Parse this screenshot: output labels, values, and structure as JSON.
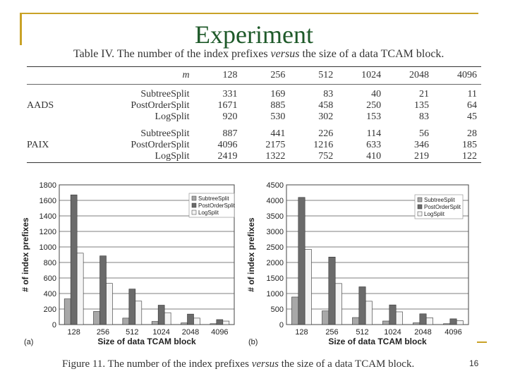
{
  "slide": {
    "title": "Experiment",
    "page_number": "16"
  },
  "table": {
    "caption_pre": "Table IV. The number of the index prefixes ",
    "caption_em": "versus",
    "caption_post": " the size of a data TCAM block.",
    "header": {
      "m": "m",
      "cols": [
        "128",
        "256",
        "512",
        "1024",
        "2048",
        "4096"
      ]
    },
    "groups": [
      {
        "name": "AADS",
        "rows": [
          {
            "label": "SubtreeSplit",
            "values": [
              "331",
              "169",
              "83",
              "40",
              "21",
              "11"
            ]
          },
          {
            "label": "PostOrderSplit",
            "values": [
              "1671",
              "885",
              "458",
              "250",
              "135",
              "64"
            ]
          },
          {
            "label": "LogSplit",
            "values": [
              "920",
              "530",
              "302",
              "153",
              "83",
              "45"
            ]
          }
        ]
      },
      {
        "name": "PAIX",
        "rows": [
          {
            "label": "SubtreeSplit",
            "values": [
              "887",
              "441",
              "226",
              "114",
              "56",
              "28"
            ]
          },
          {
            "label": "PostOrderSplit",
            "values": [
              "4096",
              "2175",
              "1216",
              "633",
              "346",
              "185"
            ]
          },
          {
            "label": "LogSplit",
            "values": [
              "2419",
              "1322",
              "752",
              "410",
              "219",
              "122"
            ]
          }
        ]
      }
    ]
  },
  "figure": {
    "caption_pre": "Figure 11. The number of the index prefixes ",
    "caption_em": "versus",
    "caption_post": " the size of a data TCAM block."
  },
  "colors": {
    "title": "#1f5a2a",
    "accent": "#c9a227",
    "subtree": "#a8a8a8",
    "postorder": "#6b6b6b",
    "log": "#f4f4f4"
  },
  "chart_data": [
    {
      "type": "bar",
      "panel_label": "(a)",
      "categories": [
        "128",
        "256",
        "512",
        "1024",
        "2048",
        "4096"
      ],
      "series": [
        {
          "name": "SubtreeSplit",
          "values": [
            331,
            169,
            83,
            40,
            21,
            11
          ]
        },
        {
          "name": "PostOrderSplit",
          "values": [
            1671,
            885,
            458,
            250,
            135,
            64
          ]
        },
        {
          "name": "LogSplit",
          "values": [
            920,
            530,
            302,
            153,
            83,
            45
          ]
        }
      ],
      "xlabel": "Size of data TCAM block",
      "ylabel": "# of index prefixes",
      "ylim": [
        0,
        1800
      ],
      "yticks": [
        "0",
        "200",
        "400",
        "600",
        "800",
        "1000",
        "1200",
        "1400",
        "1600",
        "1800"
      ],
      "legend": "top-right",
      "grid": true
    },
    {
      "type": "bar",
      "panel_label": "(b)",
      "categories": [
        "128",
        "256",
        "512",
        "1024",
        "2048",
        "4096"
      ],
      "series": [
        {
          "name": "SubtreeSplit",
          "values": [
            887,
            441,
            226,
            114,
            56,
            28
          ]
        },
        {
          "name": "PostOrderSplit",
          "values": [
            4096,
            2175,
            1216,
            633,
            346,
            185
          ]
        },
        {
          "name": "LogSplit",
          "values": [
            2419,
            1322,
            752,
            410,
            219,
            122
          ]
        }
      ],
      "xlabel": "Size of data TCAM block",
      "ylabel": "# of index prefixes",
      "ylim": [
        0,
        4500
      ],
      "yticks": [
        "0",
        "500",
        "1000",
        "1500",
        "2000",
        "2500",
        "3000",
        "3500",
        "4000",
        "4500"
      ],
      "legend": "top-right",
      "grid": true
    }
  ]
}
